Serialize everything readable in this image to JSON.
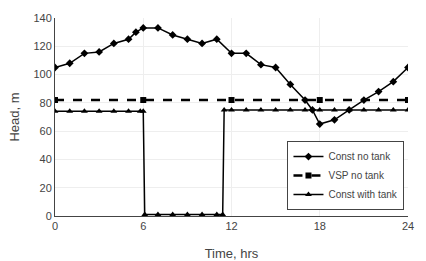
{
  "chart_data": {
    "type": "line",
    "xlabel": "Time, hrs",
    "ylabel": "Head, m",
    "xlim": [
      0,
      24
    ],
    "ylim": [
      0,
      140
    ],
    "xticks": [
      0,
      6,
      12,
      18,
      24
    ],
    "yticks": [
      0,
      20,
      40,
      60,
      80,
      100,
      120,
      140
    ],
    "grid": true,
    "legend": "lower right",
    "series": [
      {
        "name": "Const no tank",
        "color": "#000000",
        "marker": "diamond",
        "line_style": "solid",
        "x": [
          0,
          1,
          2,
          3,
          4,
          5,
          5.5,
          6,
          7,
          8,
          9,
          10,
          11,
          12,
          13,
          14,
          15,
          16,
          17,
          17.5,
          18,
          19,
          20,
          21,
          22,
          23,
          24
        ],
        "values": [
          105,
          108,
          115,
          116,
          122,
          125,
          130,
          133,
          133,
          128,
          125,
          122,
          125,
          115,
          115,
          107,
          105,
          93,
          82,
          75,
          65,
          68,
          75,
          82,
          88,
          95,
          105
        ]
      },
      {
        "name": "VSP no tank",
        "color": "#000000",
        "marker": "square",
        "line_style": "dash",
        "x": [
          0,
          6,
          12,
          18,
          24
        ],
        "values": [
          82,
          82,
          82,
          82,
          82
        ]
      },
      {
        "name": "Const with tank",
        "color": "#000000",
        "marker": "triangle-up",
        "line_style": "solid",
        "x": [
          0,
          1,
          2,
          3,
          4,
          5,
          5.8,
          6.0,
          6.1,
          7,
          8,
          9,
          10,
          11,
          11.4,
          11.5,
          12,
          13,
          14,
          15,
          16,
          17,
          18,
          19,
          20,
          21,
          22,
          23,
          24
        ],
        "values": [
          74,
          74,
          74,
          74,
          74,
          74,
          74,
          74,
          1,
          1,
          1,
          1,
          1,
          1,
          1,
          75,
          75,
          75,
          75,
          75,
          75,
          75,
          75,
          75,
          75,
          75,
          75,
          75,
          75
        ]
      }
    ]
  }
}
